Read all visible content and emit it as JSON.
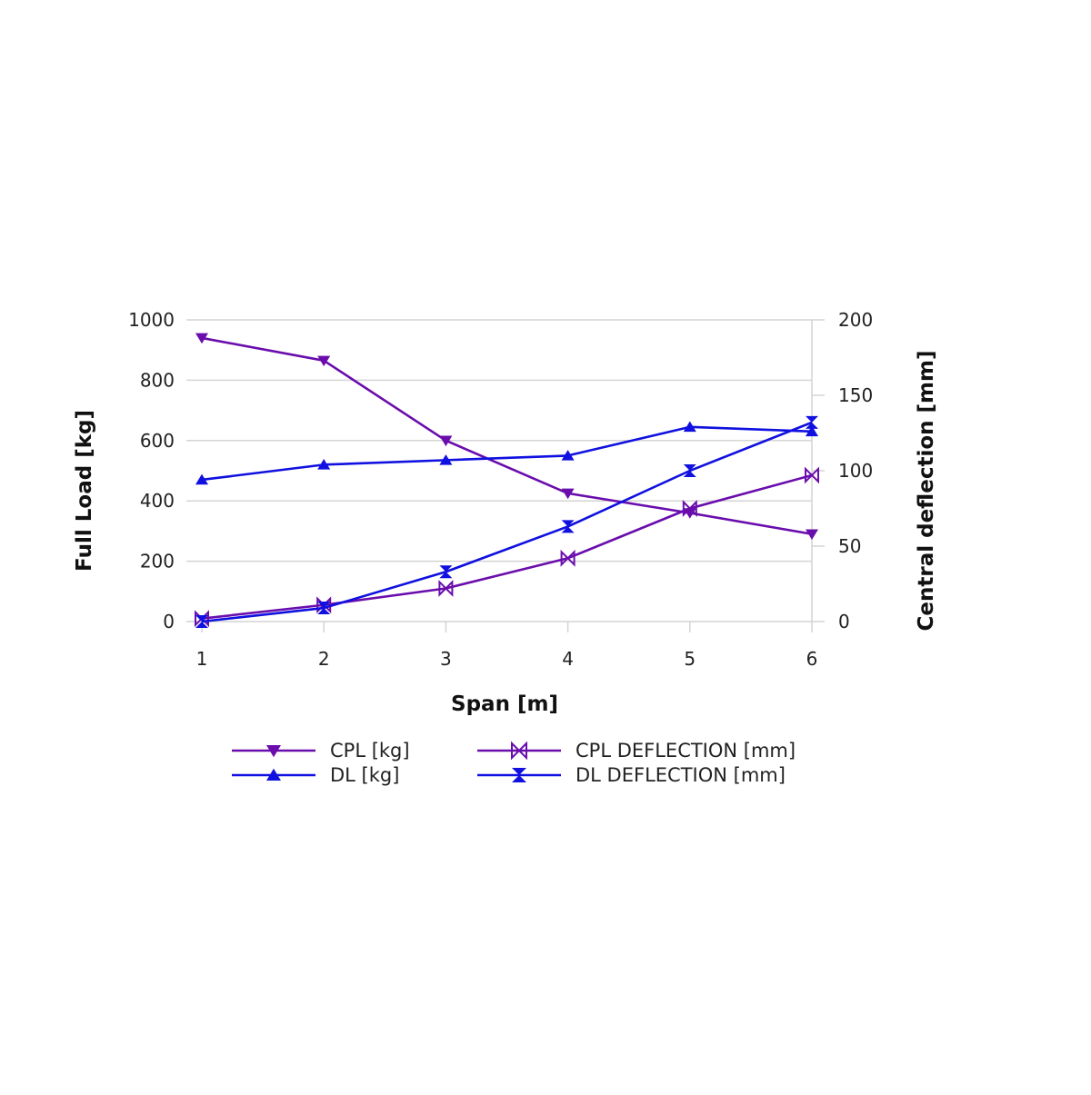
{
  "chart_data": {
    "type": "line",
    "x": [
      1,
      2,
      3,
      4,
      5,
      6
    ],
    "xlabel": "Span [m]",
    "ylabel": "Full Load [kg]",
    "y2label": "Central deflection [mm]",
    "xlim": [
      1,
      6
    ],
    "ylim": [
      0,
      1000
    ],
    "y2lim": [
      0,
      200
    ],
    "x_ticks": [
      "1",
      "2",
      "3",
      "4",
      "5",
      "6"
    ],
    "y_ticks": [
      "0",
      "200",
      "400",
      "600",
      "800",
      "1000"
    ],
    "y2_ticks": [
      "0",
      "50",
      "100",
      "150",
      "200"
    ],
    "grid": true,
    "legend_position": "bottom",
    "series": [
      {
        "name": "CPL [kg]",
        "axis": "left",
        "color": "#6a0dad",
        "marker": "triangle-down",
        "values": [
          940,
          865,
          600,
          425,
          360,
          290
        ]
      },
      {
        "name": "DL [kg]",
        "axis": "left",
        "color": "#1010e0",
        "marker": "triangle-up",
        "values": [
          470,
          520,
          535,
          550,
          645,
          630
        ]
      },
      {
        "name": "CPL DEFLECTION [mm]",
        "axis": "right",
        "color": "#6a0dad",
        "marker": "bowtie",
        "values": [
          2,
          11,
          22,
          42,
          75,
          97
        ]
      },
      {
        "name": "DL DEFLECTION [mm]",
        "axis": "right",
        "color": "#1010e0",
        "marker": "hourglass",
        "values": [
          0,
          9,
          33,
          63,
          100,
          132
        ]
      }
    ]
  }
}
